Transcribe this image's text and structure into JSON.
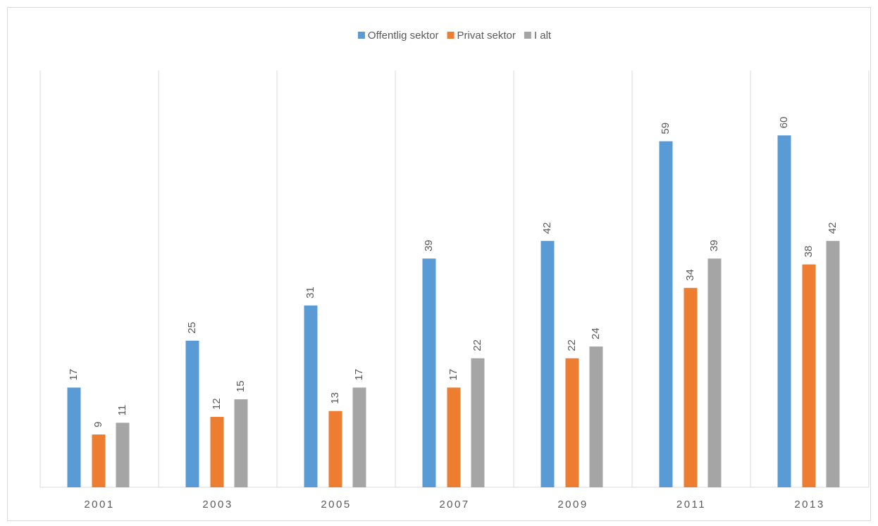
{
  "chart_data": {
    "type": "bar",
    "categories": [
      "2001",
      "2003",
      "2005",
      "2007",
      "2009",
      "2011",
      "2013"
    ],
    "series": [
      {
        "name": "Offentlig sektor",
        "color": "#5b9bd5",
        "values": [
          17,
          25,
          31,
          39,
          42,
          59,
          60
        ]
      },
      {
        "name": "Privat sektor",
        "color": "#ed7d31",
        "values": [
          9,
          12,
          13,
          17,
          22,
          34,
          38
        ]
      },
      {
        "name": "I alt",
        "color": "#a5a5a5",
        "values": [
          11,
          15,
          17,
          22,
          24,
          39,
          42
        ]
      }
    ],
    "ylim": [
      0,
      70
    ],
    "grid": true,
    "legend": "top"
  }
}
